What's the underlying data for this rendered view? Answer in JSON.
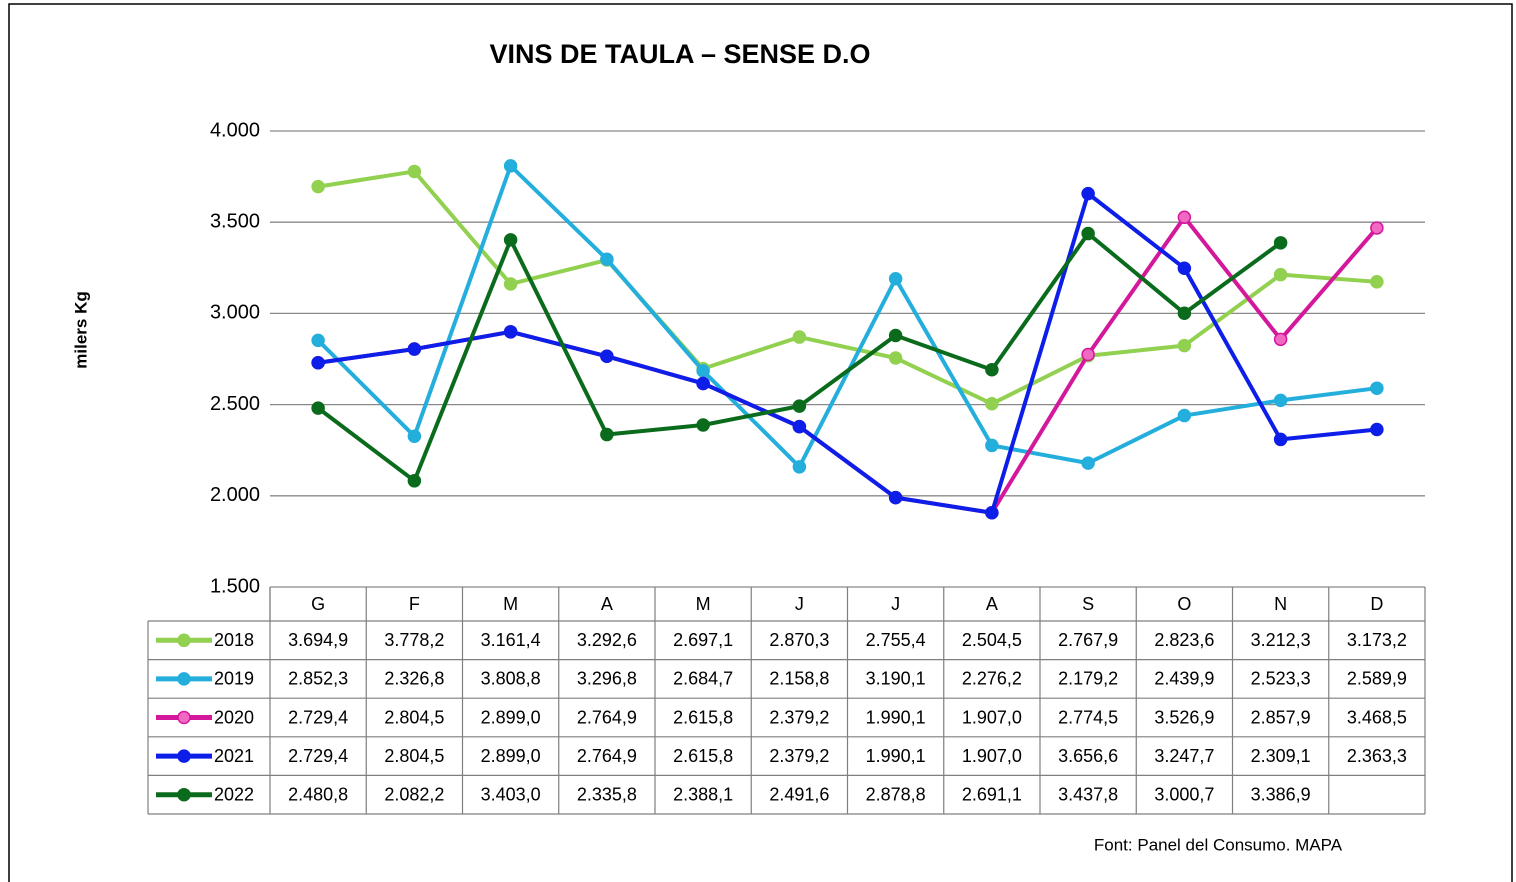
{
  "chart_data": {
    "type": "line",
    "title": "VINS DE TAULA – SENSE D.O",
    "y_label": "milers Kg",
    "source": "Font:  Panel del Consumo. MAPA",
    "categories": [
      "G",
      "F",
      "M",
      "A",
      "M",
      "J",
      "J",
      "A",
      "S",
      "O",
      "N",
      "D"
    ],
    "ylim": [
      1500,
      4000
    ],
    "yticks": [
      {
        "value": 1500,
        "label": "1.500"
      },
      {
        "value": 2000,
        "label": "2.000"
      },
      {
        "value": 2500,
        "label": "2.500"
      },
      {
        "value": 3000,
        "label": "3.000"
      },
      {
        "value": 3500,
        "label": "3.500"
      },
      {
        "value": 4000,
        "label": "4.000"
      }
    ],
    "grid": true,
    "series": [
      {
        "name": "2018",
        "color": "#92d050",
        "values": [
          3694.9,
          3778.2,
          3161.4,
          3292.6,
          2697.1,
          2870.3,
          2755.4,
          2504.5,
          2767.9,
          2823.6,
          3212.3,
          3173.2
        ],
        "value_labels": [
          "3.694,9",
          "3.778,2",
          "3.161,4",
          "3.292,6",
          "2.697,1",
          "2.870,3",
          "2.755,4",
          "2.504,5",
          "2.767,9",
          "2.823,6",
          "3.212,3",
          "3.173,2"
        ]
      },
      {
        "name": "2019",
        "color": "#23aedc",
        "values": [
          2852.3,
          2326.8,
          3808.8,
          3296.8,
          2684.7,
          2158.8,
          3190.1,
          2276.2,
          2179.2,
          2439.9,
          2523.3,
          2589.9
        ],
        "value_labels": [
          "2.852,3",
          "2.326,8",
          "3.808,8",
          "3.296,8",
          "2.684,7",
          "2.158,8",
          "3.190,1",
          "2.276,2",
          "2.179,2",
          "2.439,9",
          "2.523,3",
          "2.589,9"
        ]
      },
      {
        "name": "2020",
        "color": "#d4189c",
        "values": [
          2729.4,
          2804.5,
          2899.0,
          2764.9,
          2615.8,
          2379.2,
          1990.1,
          1907.0,
          2774.5,
          3526.9,
          2857.9,
          3468.5
        ],
        "value_labels": [
          "2.729,4",
          "2.804,5",
          "2.899,0",
          "2.764,9",
          "2.615,8",
          "2.379,2",
          "1.990,1",
          "1.907,0",
          "2.774,5",
          "3.526,9",
          "2.857,9",
          "3.468,5"
        ]
      },
      {
        "name": "2021",
        "color": "#0c1ee8",
        "values": [
          2729.4,
          2804.5,
          2899.0,
          2764.9,
          2615.8,
          2379.2,
          1990.1,
          1907.0,
          3656.6,
          3247.7,
          2309.1,
          2363.3
        ],
        "value_labels": [
          "2.729,4",
          "2.804,5",
          "2.899,0",
          "2.764,9",
          "2.615,8",
          "2.379,2",
          "1.990,1",
          "1.907,0",
          "3.656,6",
          "3.247,7",
          "2.309,1",
          "2.363,3"
        ]
      },
      {
        "name": "2022",
        "color": "#0b6b1c",
        "values": [
          2480.8,
          2082.2,
          3403.0,
          2335.8,
          2388.1,
          2491.6,
          2878.8,
          2691.1,
          3437.8,
          3000.7,
          3386.9,
          null
        ],
        "value_labels": [
          "2.480,8",
          "2.082,2",
          "3.403,0",
          "2.335,8",
          "2.388,1",
          "2.491,6",
          "2.878,8",
          "2.691,1",
          "3.437,8",
          "3.000,7",
          "3.386,9",
          null
        ]
      }
    ]
  }
}
